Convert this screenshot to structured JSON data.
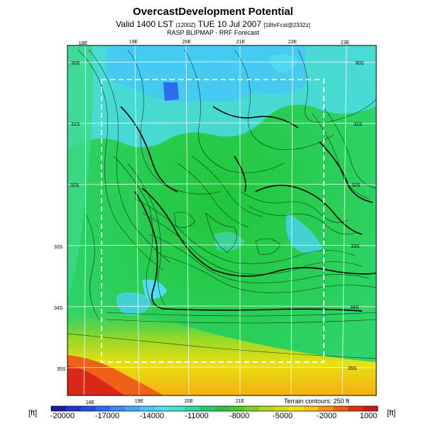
{
  "header": {
    "title": "OvercastDevelopment Potential",
    "valid_line": "Valid 1400 LST",
    "valid_code": "(1200Z)",
    "valid_date": "TUE 10 Jul 2007",
    "forecast_tag": "[18hrFcst@2332z]",
    "subtitle": "RASP BLIPMAP - RRF Forecast"
  },
  "map": {
    "top_lon_labels": [
      "18E",
      "19E",
      "20E",
      "21E",
      "22E",
      "23E"
    ],
    "bottom_lon_labels": [
      "18E",
      "19E",
      "20E",
      "21E"
    ],
    "left_lat_labels": [
      "30S",
      "31S",
      "32S",
      "33S",
      "34S",
      "35S"
    ],
    "right_lat_labels": [
      "30S",
      "31S",
      "32S",
      "33S",
      "34S",
      "35S"
    ],
    "terrain_note": "Terrain contours: 250 ft"
  },
  "colorbar": {
    "unit_left": "[ft]",
    "unit_right": "[ft]",
    "labels": [
      "-20000",
      "-17000",
      "-14000",
      "-11000",
      "-8000",
      "-5000",
      "-2000",
      "1000"
    ],
    "min": -20000,
    "max": 1000,
    "colors": [
      "#1a1aa8",
      "#1f35c8",
      "#2350e0",
      "#2b6df0",
      "#3a8af8",
      "#45a8fc",
      "#4dc4fb",
      "#50dcf0",
      "#40e2c8",
      "#30d8a0",
      "#28cc70",
      "#30c040",
      "#48c830",
      "#78d028",
      "#a8d820",
      "#d0e018",
      "#f0e010",
      "#f8c010",
      "#f89010",
      "#f06010",
      "#e03010",
      "#c81818"
    ]
  }
}
